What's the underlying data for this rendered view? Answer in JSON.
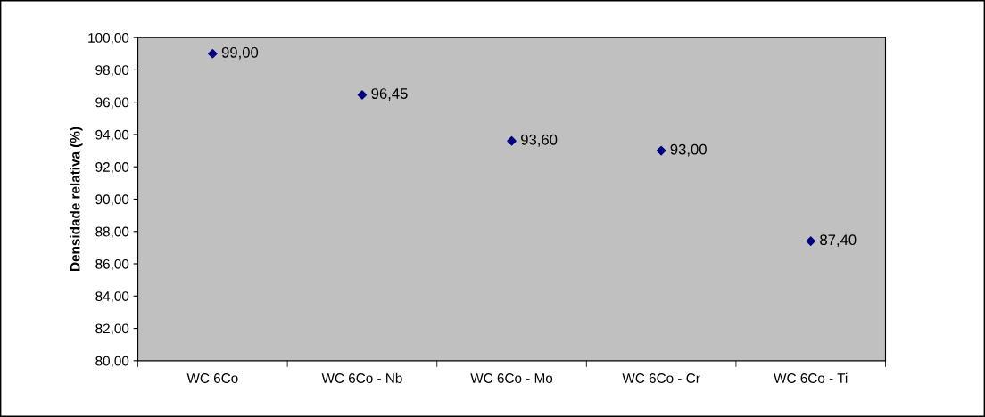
{
  "chart_data": {
    "type": "scatter",
    "ylabel": "Densidade relativa (%)",
    "categories": [
      "WC 6Co",
      "WC 6Co - Nb",
      "WC 6Co - Mo",
      "WC 6Co - Cr",
      "WC 6Co - Ti"
    ],
    "series": [
      {
        "color": "#000080",
        "values": [
          99.0,
          96.45,
          93.6,
          93.0,
          87.4
        ],
        "value_labels": [
          "99,00",
          "96,45",
          "93,60",
          "93,00",
          "87,40"
        ]
      }
    ],
    "ylim": [
      80,
      100
    ],
    "yticks": [
      {
        "value": 80,
        "label": "80,00"
      },
      {
        "value": 82,
        "label": "82,00"
      },
      {
        "value": 84,
        "label": "84,00"
      },
      {
        "value": 86,
        "label": "86,00"
      },
      {
        "value": 88,
        "label": "88,00"
      },
      {
        "value": 90,
        "label": "90,00"
      },
      {
        "value": 92,
        "label": "92,00"
      },
      {
        "value": 94,
        "label": "94,00"
      },
      {
        "value": 96,
        "label": "96,00"
      },
      {
        "value": 98,
        "label": "98,00"
      },
      {
        "value": 100,
        "label": "100,00"
      }
    ],
    "marker": "diamond",
    "grid": false,
    "legend": false
  }
}
